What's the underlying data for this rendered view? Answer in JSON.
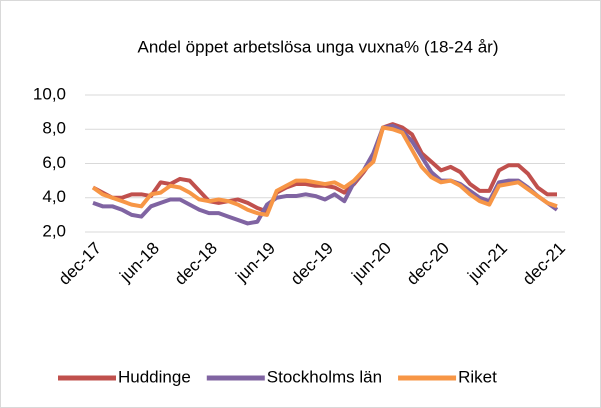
{
  "chart_data": {
    "type": "line",
    "title": "Andel öppet arbetslösa unga vuxna% (18-24 år)",
    "categories": [
      "dec-17",
      null,
      null,
      null,
      null,
      null,
      "jun-18",
      null,
      null,
      null,
      null,
      null,
      "dec-18",
      null,
      null,
      null,
      null,
      null,
      "jun-19",
      null,
      null,
      null,
      null,
      null,
      "dec-19",
      null,
      null,
      null,
      null,
      null,
      "jun-20",
      null,
      null,
      null,
      null,
      null,
      "dec-20",
      null,
      null,
      null,
      null,
      null,
      "jun-21",
      null,
      null,
      null,
      null,
      null,
      "dec-21"
    ],
    "series": [
      {
        "name": "Huddinge",
        "color": "#c0504d",
        "values": [
          4.6,
          4.3,
          4.0,
          4.0,
          4.2,
          4.2,
          4.1,
          4.9,
          4.8,
          5.1,
          5.0,
          4.4,
          3.8,
          3.7,
          3.8,
          3.9,
          3.7,
          3.4,
          3.2,
          4.3,
          4.6,
          4.8,
          4.8,
          4.7,
          4.7,
          4.6,
          4.3,
          4.8,
          5.5,
          6.3,
          8.1,
          8.3,
          8.1,
          7.7,
          6.6,
          6.1,
          5.6,
          5.8,
          5.5,
          4.8,
          4.4,
          4.4,
          5.6,
          5.9,
          5.9,
          5.4,
          4.6,
          4.2,
          4.2
        ]
      },
      {
        "name": "Stockholms län",
        "color": "#8064a2",
        "values": [
          3.7,
          3.5,
          3.5,
          3.3,
          3.0,
          2.9,
          3.5,
          3.7,
          3.9,
          3.9,
          3.6,
          3.3,
          3.1,
          3.1,
          2.9,
          2.7,
          2.5,
          2.6,
          3.6,
          4.0,
          4.1,
          4.1,
          4.2,
          4.1,
          3.9,
          4.2,
          3.8,
          4.9,
          5.6,
          6.6,
          8.1,
          8.2,
          7.9,
          7.3,
          6.4,
          5.5,
          5.0,
          5.0,
          4.8,
          4.4,
          4.0,
          3.8,
          4.9,
          5.0,
          5.0,
          4.6,
          4.1,
          3.7,
          3.3
        ]
      },
      {
        "name": "Riket",
        "color": "#f79646",
        "values": [
          4.6,
          4.2,
          4.0,
          3.8,
          3.6,
          3.5,
          4.2,
          4.3,
          4.7,
          4.6,
          4.3,
          3.9,
          3.8,
          3.9,
          3.8,
          3.6,
          3.3,
          3.1,
          3.0,
          4.4,
          4.7,
          5.0,
          5.0,
          4.9,
          4.8,
          4.9,
          4.6,
          5.0,
          5.6,
          6.1,
          8.1,
          8.0,
          7.8,
          6.8,
          5.8,
          5.2,
          4.9,
          5.0,
          4.7,
          4.2,
          3.8,
          3.6,
          4.7,
          4.8,
          4.9,
          4.5,
          4.1,
          3.7,
          3.5
        ]
      }
    ],
    "ylim": [
      2,
      10
    ],
    "yticks": [
      {
        "value": 2,
        "label": "2,0"
      },
      {
        "value": 4,
        "label": "4,0"
      },
      {
        "value": 6,
        "label": "6,0"
      },
      {
        "value": 8,
        "label": "8,0"
      },
      {
        "value": 10,
        "label": "10,0"
      }
    ],
    "grid": true,
    "legend": "bottom"
  }
}
